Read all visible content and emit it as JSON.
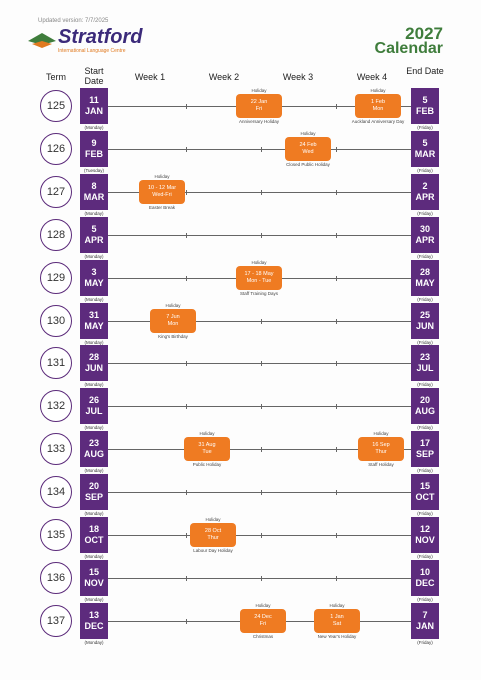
{
  "header": {
    "updated": "Updated version: 7/7/2025",
    "logo": "Stratford",
    "logo_sub": "International Language Centre",
    "year": "2027",
    "title": "Calendar"
  },
  "columns": {
    "term": "Term",
    "start": "Start Date",
    "weeks": [
      "Week 1",
      "Week 2",
      "Week 3",
      "Week 4"
    ],
    "end": "End Date"
  },
  "terms": [
    {
      "term": "125",
      "start": {
        "day": "11",
        "month": "JAN",
        "weekday": "(Monday)"
      },
      "end": {
        "day": "5",
        "month": "FEB",
        "weekday": "(Friday)"
      },
      "holidays": [
        {
          "top": "Holiday",
          "date": "22 Jan",
          "day": "Fri",
          "note": "Anniversary Holiday"
        },
        {
          "top": "Holiday",
          "date": "1 Feb",
          "day": "Mon",
          "note": "Auckland Anniversary Day"
        }
      ]
    },
    {
      "term": "126",
      "start": {
        "day": "9",
        "month": "FEB",
        "weekday": "(Tuesday)"
      },
      "end": {
        "day": "5",
        "month": "MAR",
        "weekday": "(Friday)"
      },
      "holidays": [
        {
          "top": "Holiday",
          "date": "24 Feb",
          "day": "Wed",
          "note": "Closed Public Holiday"
        }
      ]
    },
    {
      "term": "127",
      "start": {
        "day": "8",
        "month": "MAR",
        "weekday": "(Monday)"
      },
      "end": {
        "day": "2",
        "month": "APR",
        "weekday": "(Friday)"
      },
      "holidays": [
        {
          "top": "Holiday",
          "date": "10 - 12 Mar",
          "day": "Wed-Fri",
          "note": "Easter Break"
        }
      ]
    },
    {
      "term": "128",
      "start": {
        "day": "5",
        "month": "APR",
        "weekday": "(Monday)"
      },
      "end": {
        "day": "30",
        "month": "APR",
        "weekday": "(Friday)"
      },
      "holidays": []
    },
    {
      "term": "129",
      "start": {
        "day": "3",
        "month": "MAY",
        "weekday": "(Monday)"
      },
      "end": {
        "day": "28",
        "month": "MAY",
        "weekday": "(Friday)"
      },
      "holidays": [
        {
          "top": "Holiday",
          "date": "17 - 18 May",
          "day": "Mon - Tue",
          "note": "Staff Training Days"
        }
      ]
    },
    {
      "term": "130",
      "start": {
        "day": "31",
        "month": "MAY",
        "weekday": "(Monday)"
      },
      "end": {
        "day": "25",
        "month": "JUN",
        "weekday": "(Friday)"
      },
      "holidays": [
        {
          "top": "Holiday",
          "date": "7 Jun",
          "day": "Mon",
          "note": "King's Birthday"
        }
      ]
    },
    {
      "term": "131",
      "start": {
        "day": "28",
        "month": "JUN",
        "weekday": "(Monday)"
      },
      "end": {
        "day": "23",
        "month": "JUL",
        "weekday": "(Friday)"
      },
      "holidays": []
    },
    {
      "term": "132",
      "start": {
        "day": "26",
        "month": "JUL",
        "weekday": "(Monday)"
      },
      "end": {
        "day": "20",
        "month": "AUG",
        "weekday": "(Friday)"
      },
      "holidays": []
    },
    {
      "term": "133",
      "start": {
        "day": "23",
        "month": "AUG",
        "weekday": "(Monday)"
      },
      "end": {
        "day": "17",
        "month": "SEP",
        "weekday": "(Friday)"
      },
      "holidays": [
        {
          "top": "Holiday",
          "date": "31 Aug",
          "day": "Tue",
          "note": "Public Holiday"
        },
        {
          "top": "Holiday",
          "date": "16 Sep",
          "day": "Thur",
          "note": "Staff Holiday"
        }
      ]
    },
    {
      "term": "134",
      "start": {
        "day": "20",
        "month": "SEP",
        "weekday": "(Monday)"
      },
      "end": {
        "day": "15",
        "month": "OCT",
        "weekday": "(Friday)"
      },
      "holidays": []
    },
    {
      "term": "135",
      "start": {
        "day": "18",
        "month": "OCT",
        "weekday": "(Monday)"
      },
      "end": {
        "day": "12",
        "month": "NOV",
        "weekday": "(Friday)"
      },
      "holidays": [
        {
          "top": "Holiday",
          "date": "28 Oct",
          "day": "Thur",
          "note": "Labour Day Holiday"
        }
      ]
    },
    {
      "term": "136",
      "start": {
        "day": "15",
        "month": "NOV",
        "weekday": "(Monday)"
      },
      "end": {
        "day": "10",
        "month": "DEC",
        "weekday": "(Friday)"
      },
      "holidays": []
    },
    {
      "term": "137",
      "start": {
        "day": "13",
        "month": "DEC",
        "weekday": "(Monday)"
      },
      "end": {
        "day": "7",
        "month": "JAN",
        "weekday": "(Friday)"
      },
      "holidays": [
        {
          "top": "Holiday",
          "date": "24 Dec",
          "day": "Fri",
          "note": "Christmas"
        },
        {
          "top": "Holiday",
          "date": "1 Jan",
          "day": "Sat",
          "note": "New Year's Holiday"
        }
      ]
    }
  ]
}
